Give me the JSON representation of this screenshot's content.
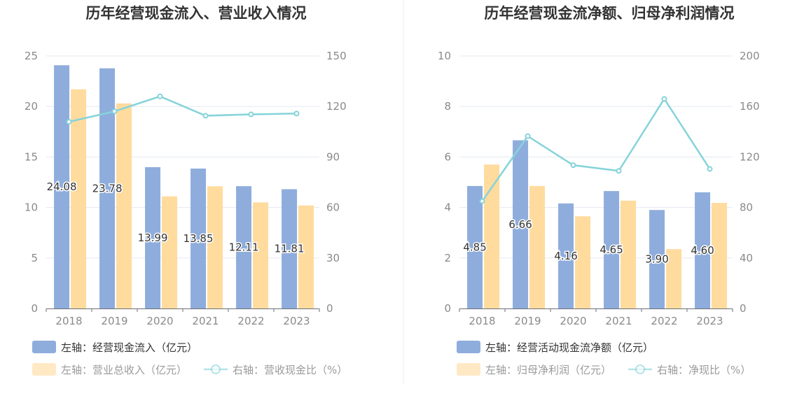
{
  "colors": {
    "bar_left1": "#8eaddc",
    "bar_left2": "#ffdb9e",
    "line": "#86d3da"
  },
  "chart_data": [
    {
      "type": "bar",
      "title": "历年经营现金流入、营业收入情况",
      "categories": [
        "2018",
        "2019",
        "2020",
        "2021",
        "2022",
        "2023"
      ],
      "left_axis": {
        "ylim": [
          0,
          25
        ],
        "ticks": [
          "0",
          "5",
          "10",
          "15",
          "20",
          "25"
        ]
      },
      "right_axis": {
        "ylim": [
          0,
          150
        ],
        "ticks": [
          "0",
          "30",
          "60",
          "90",
          "120",
          "150"
        ]
      },
      "series": [
        {
          "name": "左轴：经营现金流入（亿元）",
          "axis": "left",
          "type": "bar",
          "color": "#8eaddc",
          "values": [
            24.08,
            23.78,
            13.99,
            13.85,
            12.11,
            11.81
          ],
          "labels": [
            "24.08",
            "23.78",
            "13.99",
            "13.85",
            "12.11",
            "11.81"
          ]
        },
        {
          "name": "左轴：营业总收入（亿元）",
          "axis": "left",
          "type": "bar",
          "color": "#ffdb9e",
          "values": [
            21.7,
            20.3,
            11.1,
            12.1,
            10.5,
            10.2
          ]
        },
        {
          "name": "右轴：营收现金比（%）",
          "axis": "right",
          "type": "line",
          "color": "#86d3da",
          "values": [
            110.9,
            117.1,
            126.0,
            114.5,
            115.3,
            115.8
          ]
        }
      ],
      "legend_position": "bottom-left"
    },
    {
      "type": "bar",
      "title": "历年经营现金流净额、归母净利润情况",
      "categories": [
        "2018",
        "2019",
        "2020",
        "2021",
        "2022",
        "2023"
      ],
      "left_axis": {
        "ylim": [
          0,
          10
        ],
        "ticks": [
          "0",
          "2",
          "4",
          "6",
          "8",
          "10"
        ]
      },
      "right_axis": {
        "ylim": [
          0,
          200
        ],
        "ticks": [
          "0",
          "40",
          "80",
          "120",
          "160",
          "200"
        ]
      },
      "series": [
        {
          "name": "左轴：经营活动现金流净额（亿元）",
          "axis": "left",
          "type": "bar",
          "color": "#8eaddc",
          "values": [
            4.85,
            6.66,
            4.16,
            4.65,
            3.9,
            4.6
          ],
          "labels": [
            "4.85",
            "6.66",
            "4.16",
            "4.65",
            "3.90",
            "4.60"
          ]
        },
        {
          "name": "左轴：归母净利润（亿元）",
          "axis": "left",
          "type": "bar",
          "color": "#ffdb9e",
          "values": [
            5.7,
            4.85,
            3.65,
            4.27,
            2.35,
            4.18
          ]
        },
        {
          "name": "右轴：净现比（%）",
          "axis": "right",
          "type": "line",
          "color": "#86d3da",
          "values": [
            85,
            136.5,
            113.5,
            109,
            166,
            110.5
          ]
        }
      ],
      "legend_position": "bottom-left"
    }
  ]
}
